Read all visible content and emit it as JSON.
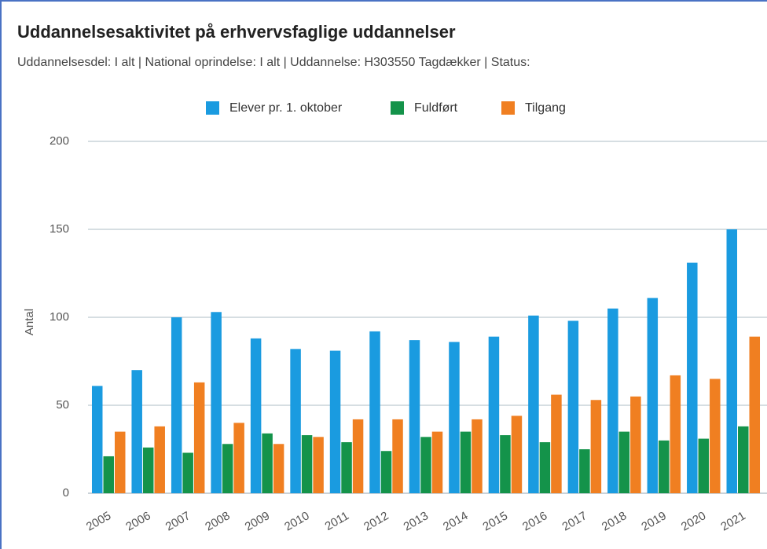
{
  "chart_data": {
    "type": "bar",
    "title": "Uddannelsesaktivitet på erhvervsfaglige uddannelser",
    "subtitle": "Uddannelsesdel: I alt | National oprindelse: I alt | Uddannelse: H303550 Tagdækker | Status:",
    "y_label": "Antal",
    "categories": [
      "2005",
      "2006",
      "2007",
      "2008",
      "2009",
      "2010",
      "2011",
      "2012",
      "2013",
      "2014",
      "2015",
      "2016",
      "2017",
      "2018",
      "2019",
      "2020",
      "2021"
    ],
    "series": [
      {
        "name": "Elever pr. 1. oktober",
        "color": "#1a9be0",
        "values": [
          61,
          70,
          100,
          103,
          88,
          82,
          81,
          92,
          87,
          86,
          89,
          101,
          98,
          105,
          111,
          131,
          150
        ]
      },
      {
        "name": "Fuldført",
        "color": "#14934a",
        "values": [
          21,
          26,
          23,
          28,
          34,
          33,
          29,
          24,
          32,
          35,
          33,
          29,
          25,
          35,
          30,
          31,
          38
        ]
      },
      {
        "name": "Tilgang",
        "color": "#f07f21",
        "values": [
          35,
          38,
          63,
          40,
          28,
          32,
          42,
          42,
          35,
          42,
          44,
          56,
          53,
          55,
          67,
          65,
          89
        ]
      }
    ],
    "ylim": [
      0,
      200
    ],
    "yticks": [
      0,
      50,
      100,
      150,
      200
    ],
    "grid": true,
    "legend": "top"
  }
}
